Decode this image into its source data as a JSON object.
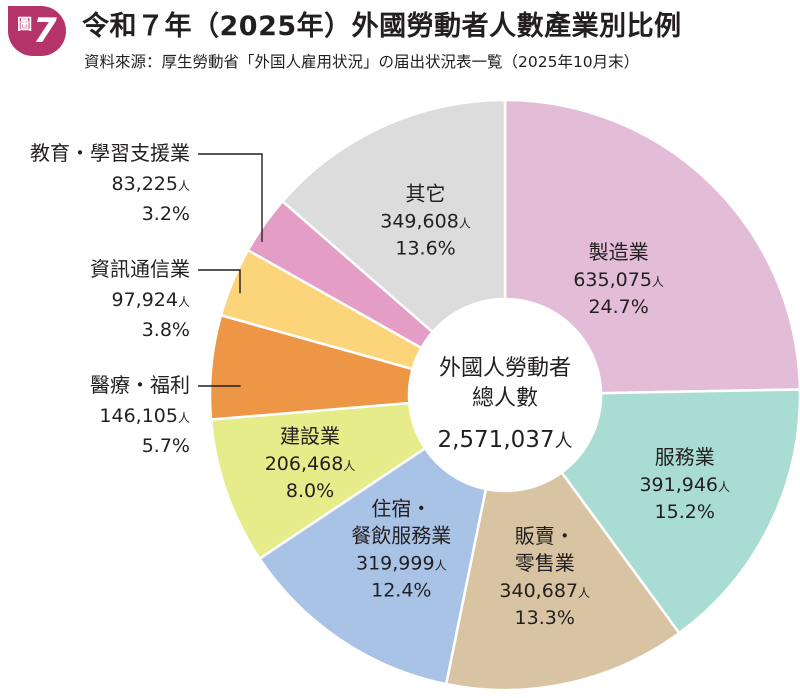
{
  "figure": {
    "label": "圖",
    "number": "7"
  },
  "title": "令和７年（2025年）外國勞動者人數產業別比例",
  "source": "資料來源：厚生勞動省「外国人雇用状況」の届出状況表一覧（2025年10月末）",
  "chart_data": {
    "type": "pie",
    "donut": true,
    "center_label": {
      "line1": "外國人勞動者",
      "line2": "總人數",
      "total": "2,571,037",
      "unit": "人"
    },
    "unit": "人",
    "slices": [
      {
        "label": "製造業",
        "lines": [
          "製造業"
        ],
        "value": 635075,
        "value_text": "635,075",
        "percent": "24.7%",
        "color": "#e3bcd8",
        "label_pos": "inside"
      },
      {
        "label": "服務業",
        "lines": [
          "服務業"
        ],
        "value": 391946,
        "value_text": "391,946",
        "percent": "15.2%",
        "color": "#a9ddd4",
        "label_pos": "inside"
      },
      {
        "label": "販賣・零售業",
        "lines": [
          "販賣・",
          "零售業"
        ],
        "value": 340687,
        "value_text": "340,687",
        "percent": "13.3%",
        "color": "#d8c4a2",
        "label_pos": "inside"
      },
      {
        "label": "住宿・餐飲服務業",
        "lines": [
          "住宿・",
          "餐飲服務業"
        ],
        "value": 319999,
        "value_text": "319,999",
        "percent": "12.4%",
        "color": "#a9c3e6",
        "label_pos": "inside"
      },
      {
        "label": "建設業",
        "lines": [
          "建設業"
        ],
        "value": 206468,
        "value_text": "206,468",
        "percent": "8.0%",
        "color": "#e5ec89",
        "label_pos": "inside"
      },
      {
        "label": "醫療・福利",
        "lines": [
          "醫療・福利"
        ],
        "value": 146105,
        "value_text": "146,105",
        "percent": "5.7%",
        "color": "#ec9646",
        "label_pos": "outside"
      },
      {
        "label": "資訊通信業",
        "lines": [
          "資訊通信業"
        ],
        "value": 97924,
        "value_text": "97,924",
        "percent": "3.8%",
        "color": "#fcd47a",
        "label_pos": "outside"
      },
      {
        "label": "教育・學習支援業",
        "lines": [
          "教育・學習支援業"
        ],
        "value": 83225,
        "value_text": "83,225",
        "percent": "3.2%",
        "color": "#e49dc5",
        "label_pos": "outside"
      },
      {
        "label": "其它",
        "lines": [
          "其它"
        ],
        "value": 349608,
        "value_text": "349,608",
        "percent": "13.6%",
        "color": "#dcdcdc",
        "label_pos": "inside"
      }
    ]
  }
}
